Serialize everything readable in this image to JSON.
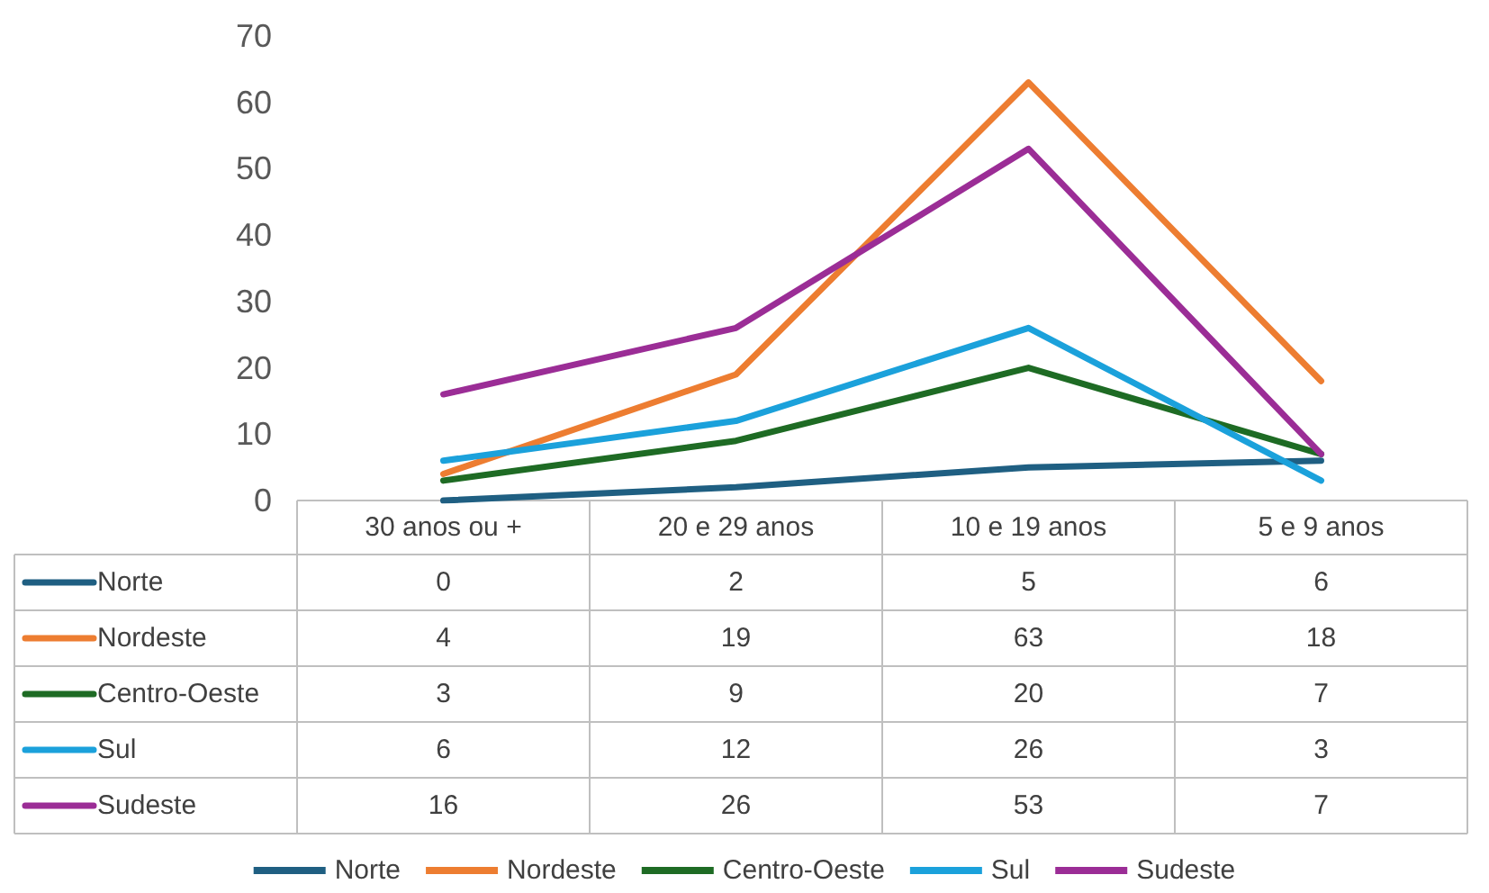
{
  "chart_data": {
    "type": "line",
    "categories": [
      "30 anos ou +",
      "20 e 29 anos",
      "10 e 19 anos",
      "5 e 9 anos"
    ],
    "series": [
      {
        "name": "Norte",
        "color": "#1f5f82",
        "values": [
          0,
          2,
          5,
          6
        ]
      },
      {
        "name": "Nordeste",
        "color": "#ed7d31",
        "values": [
          4,
          19,
          63,
          18
        ]
      },
      {
        "name": "Centro-Oeste",
        "color": "#1e6b24",
        "values": [
          3,
          9,
          20,
          7
        ]
      },
      {
        "name": "Sul",
        "color": "#1ba1db",
        "values": [
          6,
          12,
          26,
          3
        ]
      },
      {
        "name": "Sudeste",
        "color": "#9b2d96",
        "values": [
          16,
          26,
          53,
          7
        ]
      }
    ],
    "ylim": [
      0,
      70
    ],
    "yticks": [
      0,
      10,
      20,
      30,
      40,
      50,
      60,
      70
    ],
    "grid": false,
    "legend": "bottom",
    "marker": "none",
    "line_style": "solid",
    "data_labels": true
  }
}
